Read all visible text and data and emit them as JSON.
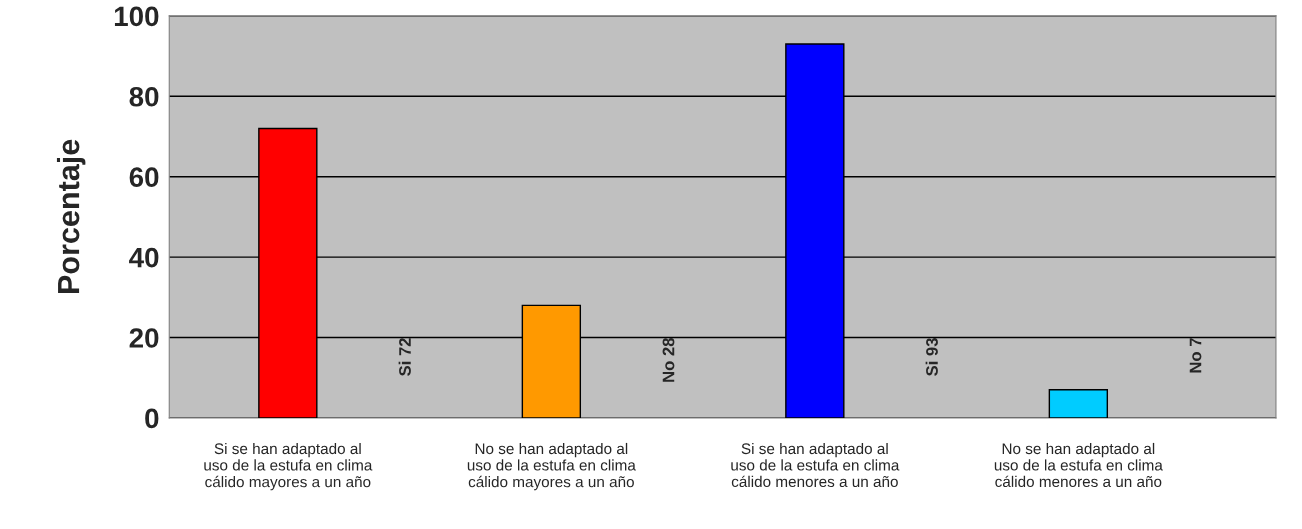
{
  "chart_data": {
    "type": "bar",
    "ylabel": "Porcentaje",
    "categories": [
      "Si se han adaptado al\nuso de la estufa en clima\ncálido mayores a un año",
      "No se han adaptado al\nuso de la estufa en clima\ncálido mayores a un año",
      "Si se han adaptado al\nuso de la estufa en clima\ncálido menores a un año",
      "No se han adaptado al\nuso de la estufa en clima\ncálido menores a un año"
    ],
    "values": [
      72,
      28,
      93,
      7
    ],
    "colors": [
      "#ff0000",
      "#ff9900",
      "#0000ff",
      "#00ccff"
    ],
    "annotations": [
      "Si 72",
      "No 28",
      "Si 93",
      "No 7"
    ],
    "ylim": [
      0,
      100
    ],
    "yticks": [
      0,
      20,
      40,
      60,
      80,
      100
    ],
    "grid": "y"
  }
}
